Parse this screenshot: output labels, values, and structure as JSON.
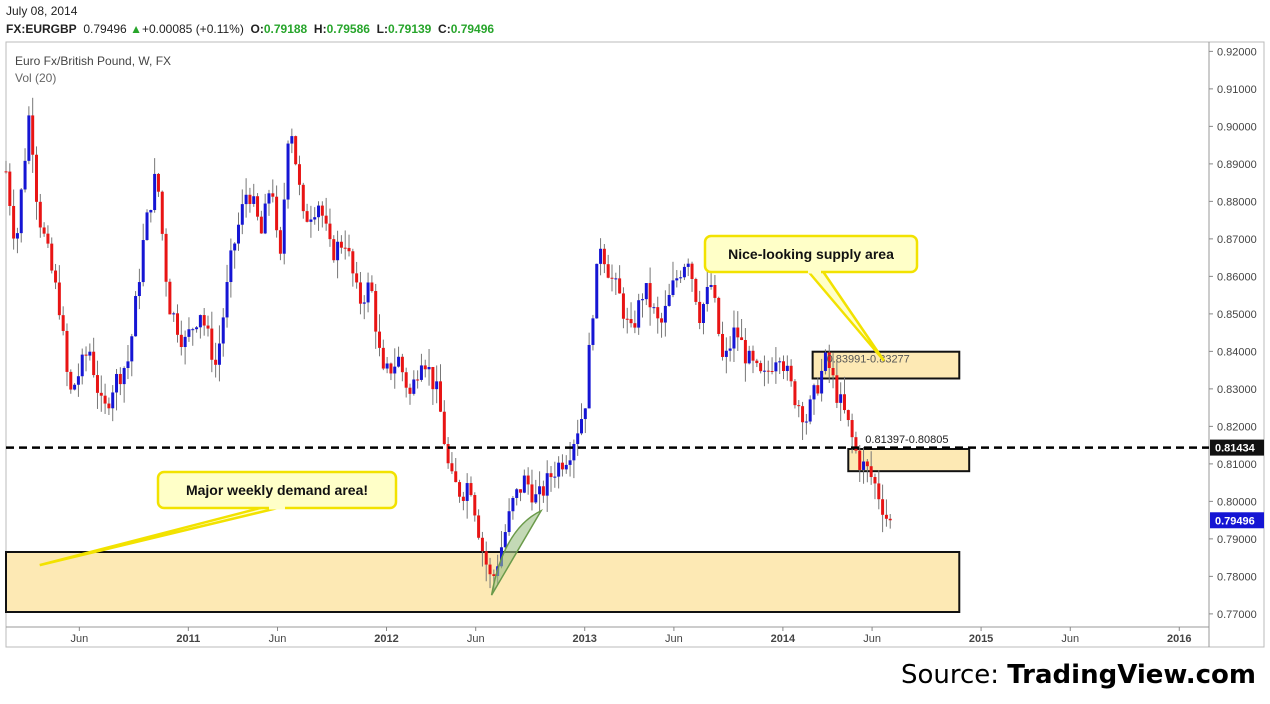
{
  "header": {
    "date": "July 08, 2014",
    "symbol": "FX:EURGBP",
    "last": "0.79496",
    "change": "+0.00085 (+0.11%)",
    "open_label": "O:",
    "open": "0.79188",
    "high_label": "H:",
    "high": "0.79586",
    "low_label": "L:",
    "low": "0.79139",
    "close_label": "C:",
    "close": "0.79496"
  },
  "chart_data": {
    "type": "candlestick",
    "title": "Euro Fx/British Pound, W, FX",
    "indicator": "Vol (20)",
    "ylim": [
      0.7665,
      0.9225
    ],
    "y_ticks": [
      0.77,
      0.78,
      0.79,
      0.8,
      0.81,
      0.82,
      0.83,
      0.84,
      0.85,
      0.86,
      0.87,
      0.88,
      0.89,
      0.9,
      0.91,
      0.92
    ],
    "y_tick_labels": [
      "0.77000",
      "0.78000",
      "0.79000",
      "0.80000",
      "0.81000",
      "0.82000",
      "0.83000",
      "0.84000",
      "0.85000",
      "0.86000",
      "0.87000",
      "0.88000",
      "0.89000",
      "0.90000",
      "0.91000",
      "0.92000"
    ],
    "x_range": [
      2010.08,
      2016.15
    ],
    "x_ticks": [
      {
        "x": 2010.45,
        "label": "Jun",
        "bold": false
      },
      {
        "x": 2011.0,
        "label": "2011",
        "bold": true
      },
      {
        "x": 2011.45,
        "label": "Jun",
        "bold": false
      },
      {
        "x": 2012.0,
        "label": "2012",
        "bold": true
      },
      {
        "x": 2012.45,
        "label": "Jun",
        "bold": false
      },
      {
        "x": 2013.0,
        "label": "2013",
        "bold": true
      },
      {
        "x": 2013.45,
        "label": "Jun",
        "bold": false
      },
      {
        "x": 2014.0,
        "label": "2014",
        "bold": true
      },
      {
        "x": 2014.45,
        "label": "Jun",
        "bold": false
      },
      {
        "x": 2015.0,
        "label": "2015",
        "bold": true
      },
      {
        "x": 2015.45,
        "label": "Jun",
        "bold": false
      },
      {
        "x": 2016.0,
        "label": "2016",
        "bold": true
      }
    ],
    "up_color": "#1515d4",
    "down_color": "#e81414",
    "price_path": [
      [
        2010.08,
        0.888
      ],
      [
        2010.13,
        0.868
      ],
      [
        2010.2,
        0.905
      ],
      [
        2010.24,
        0.878
      ],
      [
        2010.35,
        0.852
      ],
      [
        2010.4,
        0.828
      ],
      [
        2010.5,
        0.841
      ],
      [
        2010.57,
        0.823
      ],
      [
        2010.62,
        0.831
      ],
      [
        2010.7,
        0.838
      ],
      [
        2010.78,
        0.872
      ],
      [
        2010.84,
        0.888
      ],
      [
        2010.9,
        0.853
      ],
      [
        2010.98,
        0.842
      ],
      [
        2011.06,
        0.851
      ],
      [
        2011.14,
        0.836
      ],
      [
        2011.22,
        0.866
      ],
      [
        2011.3,
        0.884
      ],
      [
        2011.37,
        0.871
      ],
      [
        2011.42,
        0.887
      ],
      [
        2011.46,
        0.86
      ],
      [
        2011.51,
        0.904
      ],
      [
        2011.58,
        0.875
      ],
      [
        2011.66,
        0.88
      ],
      [
        2011.72,
        0.866
      ],
      [
        2011.79,
        0.87
      ],
      [
        2011.86,
        0.853
      ],
      [
        2011.92,
        0.858
      ],
      [
        2011.98,
        0.833
      ],
      [
        2012.06,
        0.838
      ],
      [
        2012.12,
        0.828
      ],
      [
        2012.18,
        0.84
      ],
      [
        2012.26,
        0.828
      ],
      [
        2012.32,
        0.806
      ],
      [
        2012.38,
        0.802
      ],
      [
        2012.42,
        0.806
      ],
      [
        2012.48,
        0.788
      ],
      [
        2012.53,
        0.778
      ],
      [
        2012.57,
        0.786
      ],
      [
        2012.64,
        0.8
      ],
      [
        2012.7,
        0.806
      ],
      [
        2012.76,
        0.8
      ],
      [
        2012.84,
        0.808
      ],
      [
        2012.92,
        0.813
      ],
      [
        2013.0,
        0.825
      ],
      [
        2013.04,
        0.851
      ],
      [
        2013.08,
        0.869
      ],
      [
        2013.13,
        0.86
      ],
      [
        2013.18,
        0.854
      ],
      [
        2013.23,
        0.844
      ],
      [
        2013.3,
        0.857
      ],
      [
        2013.38,
        0.846
      ],
      [
        2013.45,
        0.858
      ],
      [
        2013.52,
        0.866
      ],
      [
        2013.58,
        0.85
      ],
      [
        2013.64,
        0.858
      ],
      [
        2013.7,
        0.836
      ],
      [
        2013.76,
        0.846
      ],
      [
        2013.82,
        0.838
      ],
      [
        2013.9,
        0.832
      ],
      [
        2013.98,
        0.841
      ],
      [
        2014.05,
        0.829
      ],
      [
        2014.12,
        0.822
      ],
      [
        2014.18,
        0.832
      ],
      [
        2014.22,
        0.838
      ],
      [
        2014.27,
        0.829
      ],
      [
        2014.32,
        0.822
      ],
      [
        2014.38,
        0.811
      ],
      [
        2014.43,
        0.808
      ],
      [
        2014.46,
        0.805
      ],
      [
        2014.49,
        0.801
      ],
      [
        2014.52,
        0.796
      ],
      [
        2014.56,
        0.7949
      ]
    ],
    "levels": [
      {
        "value": 0.81434,
        "label": "0.81434",
        "style": "dashed",
        "color": "#000000"
      }
    ],
    "current_price": {
      "value": 0.79496,
      "label": "0.79496",
      "color": "#1515d4"
    },
    "zones": [
      {
        "name": "supply",
        "x0": 2014.15,
        "x1": 2014.89,
        "y0": 0.83277,
        "y1": 0.83991,
        "label": "0.83991-0.83277"
      },
      {
        "name": "mid-demand",
        "x0": 2014.33,
        "x1": 2014.94,
        "y0": 0.80805,
        "y1": 0.81397,
        "label": "0.81397-0.80805"
      },
      {
        "name": "weekly-demand",
        "x0": 2010.08,
        "x1": 2014.89,
        "y0": 0.7705,
        "y1": 0.7865,
        "label": ""
      }
    ],
    "arc": {
      "x0": 2012.53,
      "y0": 0.775,
      "x1": 2012.78,
      "y1": 0.7975,
      "color": "#6a9a4a"
    },
    "callouts": [
      {
        "name": "supply-callout",
        "text": "Nice-looking supply area",
        "target_x": 2014.51,
        "target_y": 0.8375
      },
      {
        "name": "demand-callout",
        "text": "Major weekly demand area!",
        "target_x": 2010.25,
        "target_y": 0.783
      }
    ]
  },
  "footer": {
    "source_prefix": "Source: ",
    "source_name": "TradingView.com"
  }
}
